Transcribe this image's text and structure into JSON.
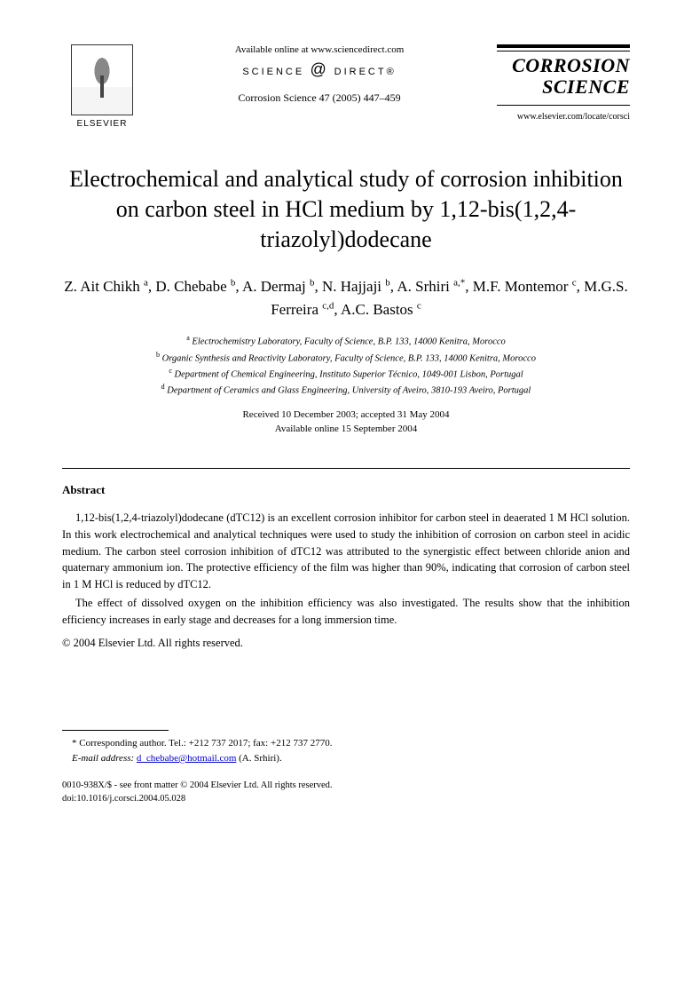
{
  "header": {
    "publisher_name": "ELSEVIER",
    "available_text": "Available online at www.sciencedirect.com",
    "sd_brand_left": "SCIENCE",
    "sd_brand_right": "DIRECT®",
    "citation": "Corrosion Science 47 (2005) 447–459",
    "journal_name_line1": "CORROSION",
    "journal_name_line2": "SCIENCE",
    "journal_url": "www.elsevier.com/locate/corsci"
  },
  "title": "Electrochemical and analytical study of corrosion inhibition on carbon steel in HCl medium by 1,12-bis(1,2,4-triazolyl)dodecane",
  "authors_html": "Z. Ait Chikh <sup>a</sup>, D. Chebabe <sup>b</sup>, A. Dermaj <sup>b</sup>, N. Hajjaji <sup>b</sup>, A. Srhiri <sup>a,*</sup>, M.F. Montemor <sup>c</sup>, M.G.S. Ferreira <sup>c,d</sup>, A.C. Bastos <sup>c</sup>",
  "affiliations": [
    "a Electrochemistry Laboratory, Faculty of Science, B.P. 133, 14000 Kenitra, Morocco",
    "b Organic Synthesis and Reactivity Laboratory, Faculty of Science, B.P. 133, 14000 Kenitra, Morocco",
    "c Department of Chemical Engineering, Instituto Superior Técnico, 1049-001 Lisbon, Portugal",
    "d Department of Ceramics and Glass Engineering, University of Aveiro, 3810-193 Aveiro, Portugal"
  ],
  "dates": {
    "received_accepted": "Received 10 December 2003; accepted 31 May 2004",
    "online": "Available online 15 September 2004"
  },
  "abstract": {
    "heading": "Abstract",
    "p1": "1,12-bis(1,2,4-triazolyl)dodecane (dTC12) is an excellent corrosion inhibitor for carbon steel in deaerated 1 M HCl solution. In this work electrochemical and analytical techniques were used to study the inhibition of corrosion on carbon steel in acidic medium. The carbon steel corrosion inhibition of dTC12 was attributed to the synergistic effect between chloride anion and quaternary ammonium ion. The protective efficiency of the film was higher than 90%, indicating that corrosion of carbon steel in 1 M HCl is reduced by dTC12.",
    "p2": "The effect of dissolved oxygen on the inhibition efficiency was also investigated. The results show that the inhibition efficiency increases in early stage and decreases for a long immersion time.",
    "copyright": "© 2004 Elsevier Ltd. All rights reserved."
  },
  "footnote": {
    "corr": "* Corresponding author. Tel.: +212 737 2017; fax: +212 737 2770.",
    "email_label": "E-mail address:",
    "email": "d_chebabe@hotmail.com",
    "email_paren": "(A. Srhiri)."
  },
  "footer": {
    "line1": "0010-938X/$ - see front matter © 2004 Elsevier Ltd. All rights reserved.",
    "line2": "doi:10.1016/j.corsci.2004.05.028"
  }
}
